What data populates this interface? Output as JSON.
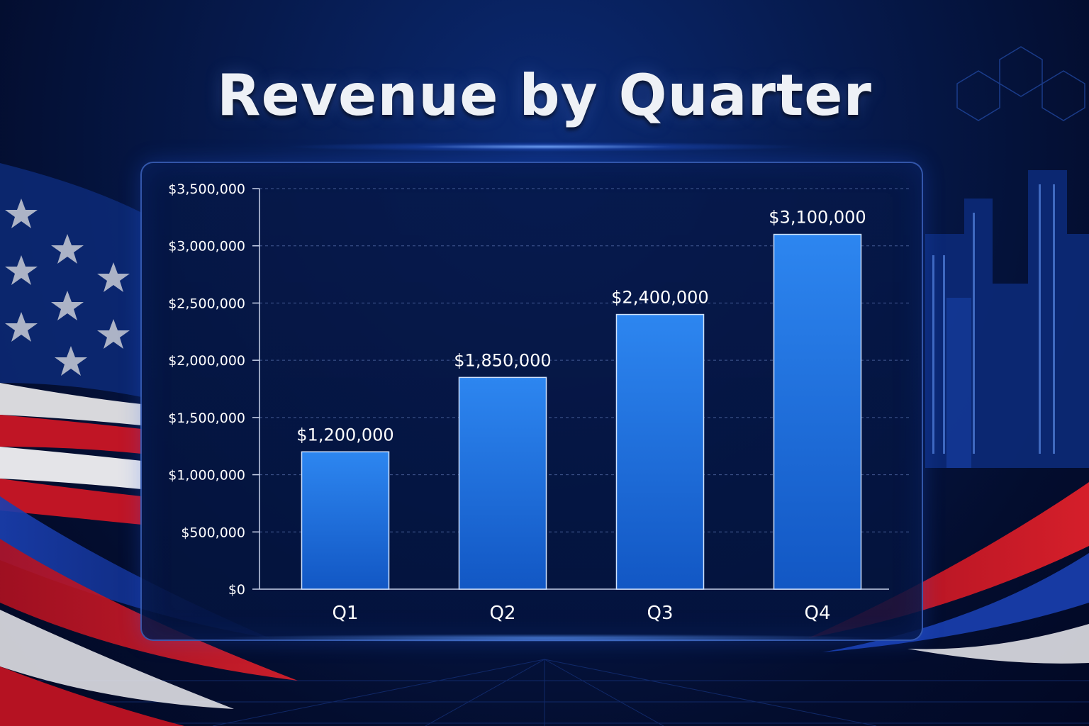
{
  "chart_data": {
    "type": "bar",
    "title": "Revenue by Quarter",
    "categories": [
      "Q1",
      "Q2",
      "Q3",
      "Q4"
    ],
    "values": [
      1200000,
      1850000,
      2400000,
      3100000
    ],
    "value_labels": [
      "$1,200,000",
      "$1,850,000",
      "$2,400,000",
      "$3,100,000"
    ],
    "y_ticks": [
      0,
      500000,
      1000000,
      1500000,
      2000000,
      2500000,
      3000000,
      3500000
    ],
    "y_tick_labels": [
      "$0",
      "$500,000",
      "$1,000,000",
      "$1,500,000",
      "$2,000,000",
      "$2,500,000",
      "$3,000,000",
      "$3,500,000"
    ],
    "ylim": [
      0,
      3500000
    ],
    "xlabel": "",
    "ylabel": "",
    "grid": true,
    "bar_color": "#1f74e0"
  }
}
